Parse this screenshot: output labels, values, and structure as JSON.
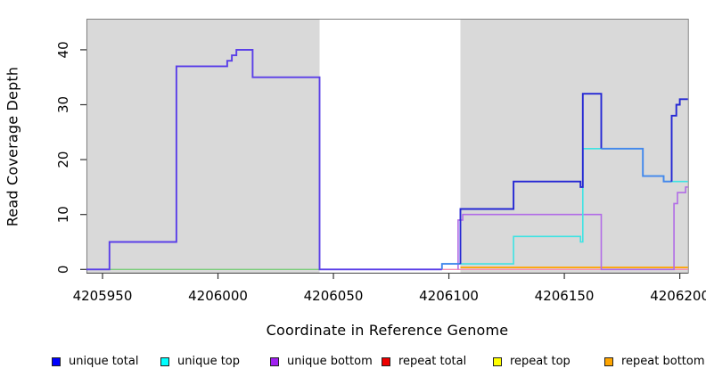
{
  "chart_data": {
    "type": "line",
    "subtype": "step-coverage-plot",
    "title": "",
    "xlabel": "Coordinate in Reference Genome",
    "ylabel": "Read Coverage Depth",
    "xlim": [
      4205943,
      4206203.5
    ],
    "ylim": [
      0,
      45.7
    ],
    "x_ticks": [
      "4205950",
      "4206000",
      "4206050",
      "4206100",
      "4206150",
      "4206200"
    ],
    "x_tick_values": [
      4205950,
      4206000,
      4206050,
      4206100,
      4206150,
      4206200
    ],
    "y_ticks": [
      "0",
      "10",
      "20",
      "30",
      "40"
    ],
    "y_tick_values": [
      0,
      10,
      20,
      30,
      40
    ],
    "grid": false,
    "plot_background": "#ffffff",
    "shaded_bands": [
      {
        "x1": 4205943,
        "x2": 4206044,
        "color": "#d9d9d9"
      },
      {
        "x1": 4206105,
        "x2": 4206203.5,
        "color": "#d9d9d9"
      }
    ],
    "series": [
      {
        "name": "unique total",
        "color": "#0000ff",
        "steps": [
          [
            4205943,
            0
          ],
          [
            4205953,
            5
          ],
          [
            4205982,
            37
          ],
          [
            4206004,
            38
          ],
          [
            4206006,
            39
          ],
          [
            4206008,
            40
          ],
          [
            4206015,
            35
          ],
          [
            4206044,
            0
          ],
          [
            4206097,
            1
          ],
          [
            4206105,
            11
          ],
          [
            4206128,
            16
          ],
          [
            4206157,
            15
          ],
          [
            4206158,
            32
          ],
          [
            4206166,
            22
          ],
          [
            4206184,
            17
          ],
          [
            4206193,
            16
          ],
          [
            4206196.5,
            28
          ],
          [
            4206198.5,
            30
          ],
          [
            4206200,
            31
          ],
          [
            4206203.5,
            31
          ]
        ]
      },
      {
        "name": "unique top",
        "color": "#00ffff",
        "steps": [
          [
            4205943,
            0
          ],
          [
            4206097,
            1
          ],
          [
            4206128,
            6
          ],
          [
            4206157,
            5
          ],
          [
            4206158,
            22
          ],
          [
            4206184,
            17
          ],
          [
            4206193,
            16
          ],
          [
            4206203.5,
            16
          ]
        ]
      },
      {
        "name": "unique bottom",
        "color": "#a020f0",
        "steps": [
          [
            4205943,
            0
          ],
          [
            4205953,
            5
          ],
          [
            4205982,
            37
          ],
          [
            4206004,
            38
          ],
          [
            4206006,
            39
          ],
          [
            4206008,
            40
          ],
          [
            4206015,
            35
          ],
          [
            4206044,
            0
          ],
          [
            4206104,
            9
          ],
          [
            4206106,
            10
          ],
          [
            4206166,
            0
          ],
          [
            4206197.5,
            12
          ],
          [
            4206199,
            14
          ],
          [
            4206202.5,
            15
          ],
          [
            4206203.5,
            15
          ]
        ]
      },
      {
        "name": "repeat total",
        "color": "#ee0000",
        "steps": [
          [
            4205943,
            0
          ],
          [
            4206203.5,
            0
          ]
        ]
      },
      {
        "name": "repeat top",
        "color": "#ffff00",
        "steps": [
          [
            4205943,
            0
          ],
          [
            4206203.5,
            0
          ]
        ]
      },
      {
        "name": "repeat bottom",
        "color": "#ffa500",
        "steps": [
          [
            4206105,
            0
          ],
          [
            4206203.5,
            0
          ]
        ]
      }
    ],
    "drawn_segments": [
      {
        "name": "zero-line-left-blend",
        "color": "#7dcd7d",
        "width": 1.4,
        "pts": [
          [
            4205943,
            0
          ],
          [
            4206044,
            0
          ]
        ]
      },
      {
        "name": "zero-line-pink-blend",
        "color": "#f591b5",
        "width": 1.4,
        "pts": [
          [
            4206044,
            0
          ],
          [
            4206203.5,
            0
          ]
        ]
      },
      {
        "name": "repeat-bottom-line",
        "color": "#ffa500",
        "width": 1.8,
        "pts": [
          [
            4206105,
            0.35
          ],
          [
            4206203.5,
            0.35
          ]
        ]
      },
      {
        "name": "unique-bottom-line",
        "color": "#b16ce6",
        "width": 1.6,
        "pts": [
          [
            4206104,
            0
          ],
          [
            4206104,
            9
          ],
          [
            4206106,
            9
          ],
          [
            4206106,
            10
          ],
          [
            4206166,
            10
          ],
          [
            4206166,
            0
          ],
          [
            4206197.5,
            0
          ],
          [
            4206197.5,
            12
          ],
          [
            4206199,
            12
          ],
          [
            4206199,
            14
          ],
          [
            4206202.5,
            14
          ],
          [
            4206202.5,
            15
          ],
          [
            4206203.5,
            15
          ]
        ]
      },
      {
        "name": "unique-top-line",
        "color": "#3fe3e3",
        "width": 1.6,
        "pts": [
          [
            4206097,
            1
          ],
          [
            4206128,
            1
          ],
          [
            4206128,
            6
          ],
          [
            4206157,
            6
          ],
          [
            4206157,
            5
          ],
          [
            4206158,
            5
          ],
          [
            4206158,
            22
          ],
          [
            4206184,
            22
          ],
          [
            4206184,
            17
          ],
          [
            4206193,
            17
          ],
          [
            4206193,
            16
          ],
          [
            4206203.5,
            16
          ]
        ]
      },
      {
        "name": "unique-total-left-blend",
        "color": "#5a3fe8",
        "width": 1.9,
        "pts": [
          [
            4205943,
            0
          ],
          [
            4205953,
            0
          ],
          [
            4205953,
            5
          ],
          [
            4205982,
            5
          ],
          [
            4205982,
            37
          ],
          [
            4206004,
            37
          ],
          [
            4206004,
            38
          ],
          [
            4206006,
            38
          ],
          [
            4206006,
            39
          ],
          [
            4206008,
            39
          ],
          [
            4206008,
            40
          ],
          [
            4206015,
            40
          ],
          [
            4206015,
            35
          ],
          [
            4206044,
            35
          ],
          [
            4206044,
            0
          ],
          [
            4206097,
            0
          ]
        ]
      },
      {
        "name": "unique-total-over-top-1",
        "color": "#4487ec",
        "width": 1.9,
        "pts": [
          [
            4206097,
            0
          ],
          [
            4206097,
            1
          ],
          [
            4206105,
            1
          ]
        ]
      },
      {
        "name": "unique-total-mid",
        "color": "#2427d4",
        "width": 1.9,
        "pts": [
          [
            4206105,
            1
          ],
          [
            4206105,
            11
          ],
          [
            4206128,
            11
          ],
          [
            4206128,
            16
          ],
          [
            4206157,
            16
          ],
          [
            4206157,
            15
          ],
          [
            4206158,
            15
          ],
          [
            4206158,
            32
          ],
          [
            4206166,
            32
          ],
          [
            4206166,
            22
          ]
        ]
      },
      {
        "name": "unique-total-over-top-2",
        "color": "#4487ec",
        "width": 1.9,
        "pts": [
          [
            4206166,
            22
          ],
          [
            4206184,
            22
          ],
          [
            4206184,
            17
          ],
          [
            4206193,
            17
          ],
          [
            4206193,
            16
          ],
          [
            4206196.5,
            16
          ]
        ]
      },
      {
        "name": "unique-total-right",
        "color": "#2427d4",
        "width": 1.9,
        "pts": [
          [
            4206196.5,
            16
          ],
          [
            4206196.5,
            28
          ],
          [
            4206198.5,
            28
          ],
          [
            4206198.5,
            30
          ],
          [
            4206200,
            30
          ],
          [
            4206200,
            31
          ],
          [
            4206203.5,
            31
          ]
        ]
      }
    ],
    "legend": {
      "position": "bottom",
      "entries": [
        {
          "label": "unique total",
          "color": "#0000ff"
        },
        {
          "label": "unique top",
          "color": "#00ffff"
        },
        {
          "label": "unique bottom",
          "color": "#a020f0"
        },
        {
          "label": "repeat total",
          "color": "#ee0000"
        },
        {
          "label": "repeat top",
          "color": "#ffff00"
        },
        {
          "label": "repeat bottom",
          "color": "#ffa500"
        }
      ]
    }
  }
}
